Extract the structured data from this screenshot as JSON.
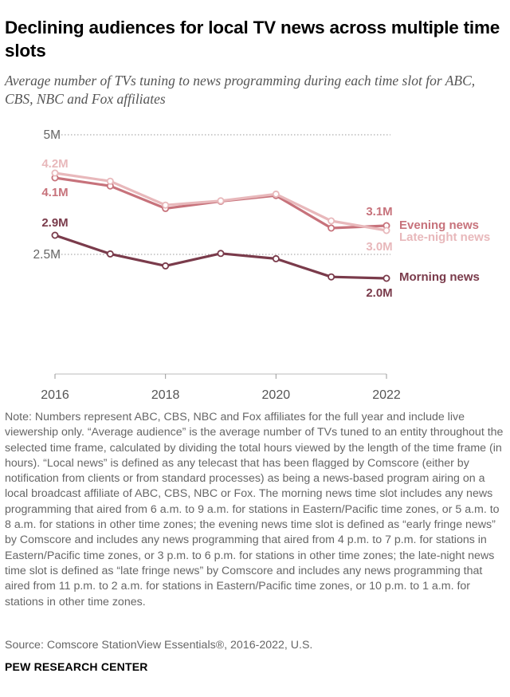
{
  "title": "Declining audiences for local TV news across multiple time slots",
  "subtitle": "Average number of TVs tuning to news programming during each time slot for ABC, CBS, NBC and Fox affiliates",
  "note": "Note: Numbers represent ABC, CBS, NBC and Fox affiliates for the full year and include live viewership only. “Average audience” is the average number of TVs tuned to an entity throughout the selected time frame, calculated by dividing the total hours viewed by the length of the time frame (in hours). “Local news” is defined as any telecast that has been flagged by Comscore (either by notification from clients or from standard processes) as being a news-based program airing on a local broadcast affiliate of ABC, CBS, NBC or Fox. The morning news time slot includes any news programming that aired from 6 a.m. to 9 a.m. for stations in Eastern/Pacific time zones, or 5 a.m. to 8 a.m. for stations in other time zones; the evening news time slot is defined as “early fringe news” by Comscore and includes any news programming that aired from 4 p.m. to 7 p.m. for stations in Eastern/Pacific time zones, or 3 p.m. to 6 p.m. for stations in other time zones; the late-night news time slot is defined as “late fringe news” by Comscore and includes any news programming that aired from 11 p.m. to 2 a.m. for stations in Eastern/Pacific time zones, or 10 p.m. to 1 a.m. for stations in other time zones.",
  "source": "Source: Comscore StationView Essentials®, 2016-2022, U.S.",
  "brand": "PEW RESEARCH CENTER",
  "chart_data": {
    "type": "line",
    "x": [
      2016,
      2017,
      2018,
      2019,
      2020,
      2021,
      2022
    ],
    "xticks": [
      2016,
      2018,
      2020,
      2022
    ],
    "xtick_labels": [
      "2016",
      "2018",
      "2020",
      "2022"
    ],
    "ylim": [
      0,
      5.0
    ],
    "yticks": [
      2.5,
      5.0
    ],
    "ytick_labels": [
      "2.5M",
      "5M"
    ],
    "grid": "dotted horizontal at labeled ticks",
    "series": [
      {
        "name": "Evening news",
        "color": "#c7727b",
        "values": [
          4.1,
          3.93,
          3.46,
          3.61,
          3.73,
          3.05,
          3.1
        ],
        "start_label": "4.1M",
        "end_label": "3.1M"
      },
      {
        "name": "Late-night news",
        "color": "#e8b8bb",
        "values": [
          4.2,
          4.03,
          3.53,
          3.62,
          3.76,
          3.2,
          3.0
        ],
        "start_label": "4.2M",
        "end_label": "3.0M"
      },
      {
        "name": "Morning news",
        "color": "#7a3b4b",
        "values": [
          2.9,
          2.51,
          2.26,
          2.52,
          2.41,
          2.03,
          2.0
        ],
        "start_label": "2.9M",
        "end_label": "2.0M"
      }
    ]
  }
}
